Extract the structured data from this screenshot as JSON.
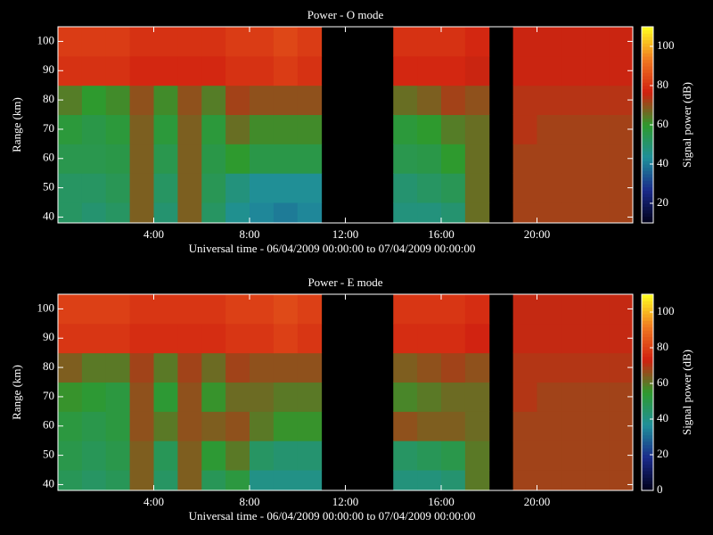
{
  "chart_data": [
    {
      "type": "heatmap",
      "title": "Power - O mode",
      "xlabel": "Universal time - 06/04/2009 00:00:00 to 07/04/2009 00:00:00",
      "ylabel": "Range (km)",
      "colorbar_label": "Signal power (dB)",
      "x_bins": [
        0,
        1,
        2,
        3,
        4,
        5,
        6,
        7,
        8,
        9,
        10,
        11,
        12,
        13,
        14,
        15,
        16,
        17,
        18,
        19,
        20,
        21,
        22,
        23,
        24
      ],
      "y_bins": [
        38,
        45,
        55,
        65,
        75,
        85,
        95,
        105
      ],
      "values": [
        [
          52,
          50,
          52,
          68,
          50,
          68,
          52,
          45,
          42,
          40,
          42,
          null,
          null,
          null,
          48,
          48,
          50,
          66,
          null,
          72,
          72,
          72,
          72,
          72
        ],
        [
          52,
          52,
          54,
          68,
          52,
          68,
          54,
          48,
          44,
          44,
          44,
          null,
          null,
          null,
          50,
          52,
          54,
          66,
          null,
          72,
          72,
          72,
          72,
          72
        ],
        [
          55,
          55,
          56,
          68,
          55,
          68,
          56,
          60,
          56,
          56,
          56,
          null,
          null,
          null,
          55,
          56,
          60,
          66,
          null,
          72,
          72,
          72,
          72,
          72
        ],
        [
          58,
          56,
          58,
          68,
          58,
          68,
          58,
          66,
          62,
          62,
          62,
          null,
          null,
          null,
          58,
          60,
          64,
          66,
          null,
          74,
          72,
          72,
          72,
          72
        ],
        [
          64,
          60,
          62,
          70,
          62,
          70,
          64,
          72,
          70,
          70,
          70,
          null,
          null,
          null,
          66,
          68,
          72,
          70,
          null,
          74,
          74,
          74,
          74,
          74
        ],
        [
          80,
          80,
          80,
          78,
          78,
          78,
          78,
          80,
          80,
          82,
          80,
          null,
          null,
          null,
          78,
          78,
          78,
          76,
          null,
          76,
          76,
          76,
          76,
          76
        ],
        [
          82,
          82,
          82,
          80,
          80,
          80,
          80,
          82,
          82,
          84,
          82,
          null,
          null,
          null,
          80,
          80,
          80,
          78,
          null,
          76,
          76,
          76,
          76,
          76
        ]
      ],
      "xlim": [
        0,
        24
      ],
      "xticks": [
        {
          "value": 4,
          "label": "4:00"
        },
        {
          "value": 8,
          "label": "8:00"
        },
        {
          "value": 12,
          "label": "12:00"
        },
        {
          "value": 16,
          "label": "16:00"
        },
        {
          "value": 20,
          "label": "20:00"
        }
      ],
      "ylim": [
        38,
        105
      ],
      "yticks": [
        40,
        50,
        60,
        70,
        80,
        90,
        100
      ],
      "clim": [
        10,
        110
      ],
      "cticks": [
        20,
        40,
        60,
        80,
        100
      ],
      "colormap": [
        "#000018",
        "#1a2a8a",
        "#1f8f9a",
        "#2e9a2e",
        "#d02010",
        "#f07820",
        "#ffff20"
      ]
    },
    {
      "type": "heatmap",
      "title": "Power - E mode",
      "xlabel": "Universal time - 06/04/2009 00:00:00 to 07/04/2009 00:00:00",
      "ylabel": "Range (km)",
      "colorbar_label": "Signal power (dB)",
      "x_bins": [
        0,
        1,
        2,
        3,
        4,
        5,
        6,
        7,
        8,
        9,
        10,
        11,
        12,
        13,
        14,
        15,
        16,
        17,
        18,
        19,
        20,
        21,
        22,
        23,
        24
      ],
      "y_bins": [
        38,
        45,
        55,
        65,
        75,
        85,
        95,
        105
      ],
      "values": [
        [
          48,
          46,
          48,
          64,
          46,
          64,
          48,
          52,
          40,
          40,
          40,
          null,
          null,
          null,
          42,
          42,
          44,
          60,
          null,
          68,
          68,
          68,
          68,
          68
        ],
        [
          50,
          48,
          50,
          64,
          48,
          64,
          54,
          60,
          46,
          44,
          44,
          null,
          null,
          null,
          46,
          48,
          50,
          60,
          null,
          68,
          68,
          68,
          68,
          68
        ],
        [
          52,
          50,
          52,
          66,
          60,
          66,
          64,
          66,
          60,
          56,
          56,
          null,
          null,
          null,
          66,
          64,
          64,
          62,
          null,
          68,
          68,
          68,
          68,
          68
        ],
        [
          56,
          54,
          52,
          66,
          54,
          66,
          56,
          62,
          62,
          60,
          60,
          null,
          null,
          null,
          58,
          60,
          62,
          62,
          null,
          70,
          68,
          68,
          68,
          68
        ],
        [
          64,
          60,
          60,
          68,
          60,
          68,
          62,
          68,
          66,
          66,
          66,
          null,
          null,
          null,
          64,
          66,
          68,
          66,
          null,
          70,
          70,
          70,
          70,
          70
        ],
        [
          78,
          78,
          78,
          76,
          76,
          76,
          76,
          78,
          78,
          80,
          78,
          null,
          null,
          null,
          76,
          76,
          76,
          74,
          null,
          72,
          72,
          72,
          72,
          72
        ],
        [
          80,
          80,
          80,
          78,
          78,
          78,
          78,
          80,
          80,
          82,
          80,
          null,
          null,
          null,
          78,
          78,
          78,
          76,
          null,
          72,
          72,
          72,
          72,
          72
        ]
      ],
      "xlim": [
        0,
        24
      ],
      "xticks": [
        {
          "value": 4,
          "label": "4:00"
        },
        {
          "value": 8,
          "label": "8:00"
        },
        {
          "value": 12,
          "label": "12:00"
        },
        {
          "value": 16,
          "label": "16:00"
        },
        {
          "value": 20,
          "label": "20:00"
        }
      ],
      "ylim": [
        38,
        105
      ],
      "yticks": [
        40,
        50,
        60,
        70,
        80,
        90,
        100
      ],
      "clim": [
        0,
        110
      ],
      "cticks": [
        0,
        20,
        40,
        60,
        80,
        100
      ],
      "colormap": [
        "#000018",
        "#1a2a8a",
        "#1f8f9a",
        "#2e9a2e",
        "#d02010",
        "#f07820",
        "#ffff20"
      ]
    }
  ]
}
